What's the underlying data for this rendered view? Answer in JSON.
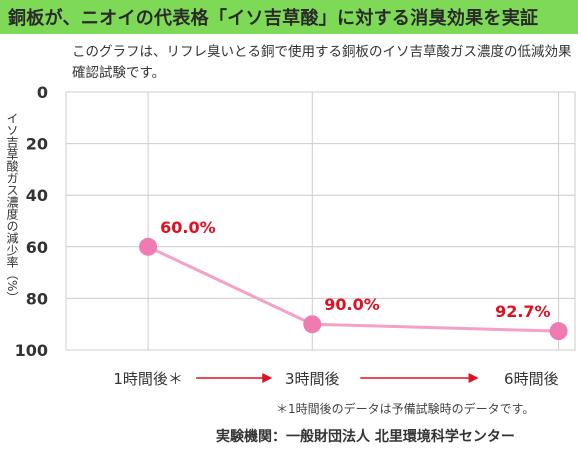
{
  "header": {
    "title": "銅板が、ニオイの代表格「イソ吉草酸」に対する消臭効果を実証"
  },
  "description": "このグラフは、リフレ臭いとる銅で使用する銅板のイソ吉草酸ガス濃度の低減効果確認試験です。",
  "footnote": "＊1時間後のデータは予備試験時のデータです。",
  "source": "実験機関：一般財団法人 北里環境科学センター",
  "colors": {
    "header_bg": "#7ed957",
    "line": "#f4a0c8",
    "point": "#f07ab2",
    "label": "#e01020",
    "arrow": "#e01020",
    "grid": "#cccccc"
  },
  "chart_data": {
    "type": "line",
    "title": "",
    "xlabel": "",
    "ylabel": "イソ吉草酸ガス濃度の減少率（%）",
    "categories": [
      "1時間後＊",
      "3時間後",
      "6時間後"
    ],
    "x_positions": [
      1,
      3,
      6
    ],
    "values": [
      60.0,
      90.0,
      92.7
    ],
    "data_labels": [
      "60.0%",
      "90.0%",
      "92.7%"
    ],
    "ylim": [
      0,
      100
    ],
    "y_inverted": true,
    "y_ticks": [
      "0",
      "20",
      "40",
      "60",
      "80",
      "100"
    ],
    "grid": true,
    "x_arrows": true
  }
}
